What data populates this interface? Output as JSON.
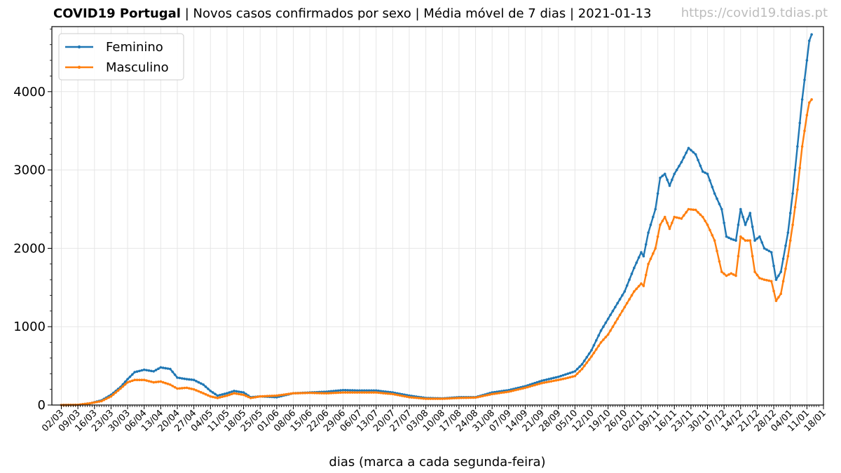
{
  "header": {
    "title_bold": "COVID19 Portugal",
    "title_rest": " | Novos casos confirmados por sexo | Média móvel de 7 dias | 2021-01-13",
    "watermark": "https://covid19.tdias.pt"
  },
  "chart_data": {
    "type": "line",
    "xlabel": "dias (marca a cada segunda-feira)",
    "ylabel": "",
    "x_start": "2020-03-02",
    "x_end": "2021-01-13",
    "xlim": [
      "2020-02-27",
      "2021-01-18"
    ],
    "ylim": [
      0,
      4830
    ],
    "yticks": [
      0,
      1000,
      2000,
      3000,
      4000
    ],
    "xtick_labels": [
      "02/03",
      "09/03",
      "16/03",
      "23/03",
      "30/03",
      "06/04",
      "13/04",
      "20/04",
      "27/04",
      "04/05",
      "11/05",
      "18/05",
      "25/05",
      "01/06",
      "08/06",
      "15/06",
      "22/06",
      "29/06",
      "06/07",
      "13/07",
      "20/07",
      "27/07",
      "03/08",
      "10/08",
      "17/08",
      "24/08",
      "31/08",
      "07/09",
      "14/09",
      "21/09",
      "28/09",
      "05/10",
      "12/10",
      "19/10",
      "26/10",
      "02/11",
      "09/11",
      "16/11",
      "23/11",
      "30/11",
      "07/12",
      "14/12",
      "21/12",
      "28/12",
      "04/01",
      "11/01",
      "18/01"
    ],
    "grid": true,
    "legend_position": "top-left",
    "series": [
      {
        "name": "Feminino",
        "color": "#1f77b4",
        "points": [
          [
            "2020-03-02",
            0
          ],
          [
            "2020-03-09",
            2
          ],
          [
            "2020-03-14",
            20
          ],
          [
            "2020-03-19",
            60
          ],
          [
            "2020-03-23",
            130
          ],
          [
            "2020-03-27",
            230
          ],
          [
            "2020-03-30",
            330
          ],
          [
            "2020-04-02",
            420
          ],
          [
            "2020-04-06",
            450
          ],
          [
            "2020-04-10",
            430
          ],
          [
            "2020-04-13",
            480
          ],
          [
            "2020-04-17",
            460
          ],
          [
            "2020-04-20",
            350
          ],
          [
            "2020-04-24",
            330
          ],
          [
            "2020-04-27",
            320
          ],
          [
            "2020-05-01",
            260
          ],
          [
            "2020-05-04",
            180
          ],
          [
            "2020-05-07",
            120
          ],
          [
            "2020-05-11",
            150
          ],
          [
            "2020-05-14",
            180
          ],
          [
            "2020-05-18",
            160
          ],
          [
            "2020-05-21",
            100
          ],
          [
            "2020-05-25",
            110
          ],
          [
            "2020-06-01",
            100
          ],
          [
            "2020-06-08",
            150
          ],
          [
            "2020-06-15",
            160
          ],
          [
            "2020-06-22",
            170
          ],
          [
            "2020-06-29",
            190
          ],
          [
            "2020-07-06",
            185
          ],
          [
            "2020-07-13",
            185
          ],
          [
            "2020-07-20",
            160
          ],
          [
            "2020-07-27",
            120
          ],
          [
            "2020-08-03",
            90
          ],
          [
            "2020-08-10",
            85
          ],
          [
            "2020-08-17",
            100
          ],
          [
            "2020-08-24",
            100
          ],
          [
            "2020-08-31",
            160
          ],
          [
            "2020-09-07",
            190
          ],
          [
            "2020-09-14",
            240
          ],
          [
            "2020-09-21",
            310
          ],
          [
            "2020-09-28",
            360
          ],
          [
            "2020-10-01",
            390
          ],
          [
            "2020-10-05",
            430
          ],
          [
            "2020-10-08",
            520
          ],
          [
            "2020-10-12",
            700
          ],
          [
            "2020-10-16",
            950
          ],
          [
            "2020-10-19",
            1100
          ],
          [
            "2020-10-23",
            1300
          ],
          [
            "2020-10-26",
            1450
          ],
          [
            "2020-10-30",
            1750
          ],
          [
            "2020-11-02",
            1950
          ],
          [
            "2020-11-03",
            1900
          ],
          [
            "2020-11-05",
            2200
          ],
          [
            "2020-11-08",
            2500
          ],
          [
            "2020-11-10",
            2900
          ],
          [
            "2020-11-12",
            2950
          ],
          [
            "2020-11-14",
            2800
          ],
          [
            "2020-11-16",
            2950
          ],
          [
            "2020-11-19",
            3100
          ],
          [
            "2020-11-22",
            3280
          ],
          [
            "2020-11-25",
            3200
          ],
          [
            "2020-11-28",
            2980
          ],
          [
            "2020-11-30",
            2950
          ],
          [
            "2020-12-03",
            2700
          ],
          [
            "2020-12-06",
            2500
          ],
          [
            "2020-12-08",
            2150
          ],
          [
            "2020-12-10",
            2120
          ],
          [
            "2020-12-12",
            2100
          ],
          [
            "2020-12-14",
            2500
          ],
          [
            "2020-12-16",
            2300
          ],
          [
            "2020-12-18",
            2450
          ],
          [
            "2020-12-20",
            2100
          ],
          [
            "2020-12-22",
            2150
          ],
          [
            "2020-12-24",
            2000
          ],
          [
            "2020-12-27",
            1950
          ],
          [
            "2020-12-29",
            1600
          ],
          [
            "2020-12-31",
            1700
          ],
          [
            "2021-01-03",
            2200
          ],
          [
            "2021-01-05",
            2700
          ],
          [
            "2021-01-07",
            3300
          ],
          [
            "2021-01-09",
            3900
          ],
          [
            "2021-01-11",
            4400
          ],
          [
            "2021-01-12",
            4650
          ],
          [
            "2021-01-13",
            4730
          ]
        ]
      },
      {
        "name": "Masculino",
        "color": "#ff7f0e",
        "points": [
          [
            "2020-03-02",
            0
          ],
          [
            "2020-03-09",
            3
          ],
          [
            "2020-03-14",
            22
          ],
          [
            "2020-03-19",
            50
          ],
          [
            "2020-03-23",
            110
          ],
          [
            "2020-03-27",
            210
          ],
          [
            "2020-03-30",
            290
          ],
          [
            "2020-04-02",
            320
          ],
          [
            "2020-04-06",
            320
          ],
          [
            "2020-04-10",
            290
          ],
          [
            "2020-04-13",
            300
          ],
          [
            "2020-04-17",
            260
          ],
          [
            "2020-04-20",
            210
          ],
          [
            "2020-04-24",
            220
          ],
          [
            "2020-04-27",
            200
          ],
          [
            "2020-05-01",
            150
          ],
          [
            "2020-05-04",
            110
          ],
          [
            "2020-05-07",
            90
          ],
          [
            "2020-05-11",
            120
          ],
          [
            "2020-05-14",
            150
          ],
          [
            "2020-05-18",
            130
          ],
          [
            "2020-05-21",
            90
          ],
          [
            "2020-05-25",
            110
          ],
          [
            "2020-06-01",
            120
          ],
          [
            "2020-06-08",
            150
          ],
          [
            "2020-06-15",
            155
          ],
          [
            "2020-06-22",
            150
          ],
          [
            "2020-06-29",
            160
          ],
          [
            "2020-07-06",
            160
          ],
          [
            "2020-07-13",
            160
          ],
          [
            "2020-07-20",
            140
          ],
          [
            "2020-07-27",
            100
          ],
          [
            "2020-08-03",
            80
          ],
          [
            "2020-08-10",
            80
          ],
          [
            "2020-08-17",
            90
          ],
          [
            "2020-08-24",
            95
          ],
          [
            "2020-08-31",
            140
          ],
          [
            "2020-09-07",
            170
          ],
          [
            "2020-09-14",
            220
          ],
          [
            "2020-09-21",
            280
          ],
          [
            "2020-09-28",
            320
          ],
          [
            "2020-10-01",
            340
          ],
          [
            "2020-10-05",
            370
          ],
          [
            "2020-10-08",
            460
          ],
          [
            "2020-10-12",
            620
          ],
          [
            "2020-10-16",
            800
          ],
          [
            "2020-10-19",
            900
          ],
          [
            "2020-10-23",
            1100
          ],
          [
            "2020-10-26",
            1250
          ],
          [
            "2020-10-30",
            1450
          ],
          [
            "2020-11-02",
            1550
          ],
          [
            "2020-11-03",
            1520
          ],
          [
            "2020-11-05",
            1800
          ],
          [
            "2020-11-08",
            2000
          ],
          [
            "2020-11-10",
            2300
          ],
          [
            "2020-11-12",
            2400
          ],
          [
            "2020-11-14",
            2250
          ],
          [
            "2020-11-16",
            2400
          ],
          [
            "2020-11-19",
            2380
          ],
          [
            "2020-11-22",
            2500
          ],
          [
            "2020-11-25",
            2490
          ],
          [
            "2020-11-28",
            2400
          ],
          [
            "2020-11-30",
            2300
          ],
          [
            "2020-12-03",
            2100
          ],
          [
            "2020-12-06",
            1700
          ],
          [
            "2020-12-08",
            1650
          ],
          [
            "2020-12-10",
            1680
          ],
          [
            "2020-12-12",
            1650
          ],
          [
            "2020-12-14",
            2150
          ],
          [
            "2020-12-16",
            2100
          ],
          [
            "2020-12-18",
            2100
          ],
          [
            "2020-12-20",
            1700
          ],
          [
            "2020-12-22",
            1620
          ],
          [
            "2020-12-24",
            1600
          ],
          [
            "2020-12-27",
            1580
          ],
          [
            "2020-12-29",
            1330
          ],
          [
            "2020-12-31",
            1420
          ],
          [
            "2021-01-03",
            1900
          ],
          [
            "2021-01-05",
            2300
          ],
          [
            "2021-01-07",
            2750
          ],
          [
            "2021-01-09",
            3300
          ],
          [
            "2021-01-11",
            3700
          ],
          [
            "2021-01-12",
            3860
          ],
          [
            "2021-01-13",
            3900
          ]
        ]
      }
    ]
  }
}
